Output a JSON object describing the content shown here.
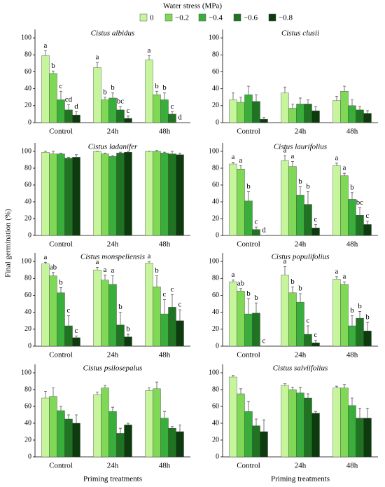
{
  "legend_title": "Water stress (MPa)",
  "ylabel": "Final germination (%)",
  "chart_data": [
    {
      "type": "bar",
      "title": "Cistus albidus",
      "categories": [
        "Control",
        "24h",
        "48h"
      ],
      "ylim": [
        0,
        110
      ],
      "yticks": [
        0,
        20,
        40,
        60,
        80,
        100
      ],
      "series": [
        {
          "name": "0",
          "color": "#c6f59c",
          "values": [
            79,
            65,
            74
          ],
          "errors": [
            6,
            6,
            5
          ],
          "annotations": [
            "a",
            "a",
            "a"
          ]
        },
        {
          "name": "−0.2",
          "color": "#7fd957",
          "values": [
            58,
            27,
            33
          ],
          "errors": [
            3,
            3,
            4
          ],
          "annotations": [
            "b",
            "b",
            "b"
          ]
        },
        {
          "name": "−0.4",
          "color": "#3aae3a",
          "values": [
            27,
            29,
            27
          ],
          "errors": [
            10,
            6,
            8
          ],
          "annotations": [
            "c",
            "b",
            "b"
          ]
        },
        {
          "name": "−0.6",
          "color": "#1e7420",
          "values": [
            15,
            15,
            10
          ],
          "errors": [
            6,
            4,
            3
          ],
          "annotations": [
            "cd",
            "bc",
            "c"
          ]
        },
        {
          "name": "−0.8",
          "color": "#0c3b0e",
          "values": [
            9,
            5,
            0
          ],
          "errors": [
            4,
            3,
            0
          ],
          "annotations": [
            "d",
            "c",
            "d"
          ]
        }
      ]
    },
    {
      "type": "bar",
      "title": "Cistus clusii",
      "categories": [
        "Control",
        "24h",
        "48h"
      ],
      "ylim": [
        0,
        110
      ],
      "yticks": [
        0,
        20,
        40,
        60,
        80,
        100
      ],
      "series": [
        {
          "name": "0",
          "color": "#c6f59c",
          "values": [
            27,
            35,
            26
          ],
          "errors": [
            8,
            7,
            5
          ]
        },
        {
          "name": "−0.2",
          "color": "#7fd957",
          "values": [
            24,
            17,
            37
          ],
          "errors": [
            6,
            5,
            6
          ]
        },
        {
          "name": "−0.4",
          "color": "#3aae3a",
          "values": [
            33,
            22,
            20
          ],
          "errors": [
            10,
            7,
            7
          ]
        },
        {
          "name": "−0.6",
          "color": "#1e7420",
          "values": [
            25,
            22,
            15
          ],
          "errors": [
            8,
            5,
            4
          ]
        },
        {
          "name": "−0.8",
          "color": "#0c3b0e",
          "values": [
            4,
            14,
            11
          ],
          "errors": [
            2,
            5,
            3
          ]
        }
      ]
    },
    {
      "type": "bar",
      "title": "Cistus ladanifer",
      "categories": [
        "Control",
        "24h",
        "48h"
      ],
      "ylim": [
        0,
        110
      ],
      "yticks": [
        0,
        20,
        40,
        60,
        80,
        100
      ],
      "series": [
        {
          "name": "0",
          "color": "#c6f59c",
          "values": [
            99,
            100,
            100
          ],
          "errors": [
            1,
            0,
            0
          ]
        },
        {
          "name": "−0.2",
          "color": "#7fd957",
          "values": [
            97,
            97,
            100
          ],
          "errors": [
            3,
            1,
            1
          ]
        },
        {
          "name": "−0.4",
          "color": "#3aae3a",
          "values": [
            97,
            94,
            98
          ],
          "errors": [
            1,
            1,
            1
          ]
        },
        {
          "name": "−0.6",
          "color": "#1e7420",
          "values": [
            92,
            98,
            97
          ],
          "errors": [
            1,
            1,
            3
          ]
        },
        {
          "name": "−0.8",
          "color": "#0c3b0e",
          "values": [
            93,
            99,
            96
          ],
          "errors": [
            3,
            1,
            2
          ]
        }
      ]
    },
    {
      "type": "bar",
      "title": "Cistus laurifolius",
      "categories": [
        "Control",
        "24h",
        "48h"
      ],
      "ylim": [
        0,
        110
      ],
      "yticks": [
        0,
        20,
        40,
        60,
        80,
        100
      ],
      "series": [
        {
          "name": "0",
          "color": "#c6f59c",
          "values": [
            85,
            89,
            83
          ],
          "errors": [
            2,
            6,
            3
          ],
          "annotations": [
            "a",
            "a",
            "a"
          ]
        },
        {
          "name": "−0.2",
          "color": "#7fd957",
          "values": [
            79,
            82,
            71
          ],
          "errors": [
            4,
            6,
            3
          ],
          "annotations": [
            "a",
            "a",
            "a"
          ]
        },
        {
          "name": "−0.4",
          "color": "#3aae3a",
          "values": [
            41,
            48,
            43
          ],
          "errors": [
            11,
            10,
            8
          ],
          "annotations": [
            "b",
            "b",
            "b"
          ]
        },
        {
          "name": "−0.6",
          "color": "#1e7420",
          "values": [
            7,
            37,
            24
          ],
          "errors": [
            3,
            15,
            9
          ],
          "annotations": [
            "c",
            "b",
            "bc"
          ]
        },
        {
          "name": "−0.8",
          "color": "#0c3b0e",
          "values": [
            0,
            9,
            13
          ],
          "errors": [
            0,
            4,
            4
          ],
          "annotations": [
            "d",
            "c",
            "c"
          ]
        }
      ]
    },
    {
      "type": "bar",
      "title": "Cistus monspeliensis",
      "categories": [
        "Control",
        "24h",
        "48h"
      ],
      "ylim": [
        0,
        110
      ],
      "yticks": [
        0,
        20,
        40,
        60,
        80,
        100
      ],
      "series": [
        {
          "name": "0",
          "color": "#c6f59c",
          "values": [
            97,
            90,
            98
          ],
          "errors": [
            2,
            3,
            2
          ],
          "annotations": [
            "a",
            "a",
            "a"
          ]
        },
        {
          "name": "−0.2",
          "color": "#7fd957",
          "values": [
            83,
            78,
            70
          ],
          "errors": [
            4,
            6,
            13
          ],
          "annotations": [
            "ab",
            "a",
            "b"
          ]
        },
        {
          "name": "−0.4",
          "color": "#3aae3a",
          "values": [
            63,
            73,
            38
          ],
          "errors": [
            6,
            10,
            17
          ],
          "annotations": [
            "b",
            "a",
            "c"
          ]
        },
        {
          "name": "−0.6",
          "color": "#1e7420",
          "values": [
            24,
            25,
            46
          ],
          "errors": [
            12,
            15,
            15
          ],
          "annotations": [
            "c",
            "b",
            "c"
          ]
        },
        {
          "name": "−0.8",
          "color": "#0c3b0e",
          "values": [
            10,
            11,
            30
          ],
          "errors": [
            2,
            3,
            13
          ],
          "annotations": [
            "c",
            "b",
            "c"
          ]
        }
      ]
    },
    {
      "type": "bar",
      "title": "Cistus populifolius",
      "categories": [
        "Control",
        "24h",
        "48h"
      ],
      "ylim": [
        0,
        110
      ],
      "yticks": [
        0,
        20,
        40,
        60,
        80,
        100
      ],
      "series": [
        {
          "name": "0",
          "color": "#c6f59c",
          "values": [
            76,
            84,
            79
          ],
          "errors": [
            2,
            10,
            3
          ],
          "annotations": [
            "a",
            "a",
            "a"
          ]
        },
        {
          "name": "−0.2",
          "color": "#7fd957",
          "values": [
            65,
            63,
            73
          ],
          "errors": [
            3,
            7,
            3
          ],
          "annotations": [
            "ab",
            "b",
            "a"
          ]
        },
        {
          "name": "−0.4",
          "color": "#3aae3a",
          "values": [
            38,
            52,
            24
          ],
          "errors": [
            18,
            10,
            12
          ],
          "annotations": [
            "b",
            "b",
            "b"
          ]
        },
        {
          "name": "−0.6",
          "color": "#1e7420",
          "values": [
            39,
            14,
            33
          ],
          "errors": [
            12,
            10,
            8
          ],
          "annotations": [
            "b",
            "c",
            "b"
          ]
        },
        {
          "name": "−0.8",
          "color": "#0c3b0e",
          "values": [
            0,
            4,
            18
          ],
          "errors": [
            0,
            3,
            10
          ],
          "annotations": [
            "c",
            "c",
            "b"
          ]
        }
      ]
    },
    {
      "type": "bar",
      "title": "Cistus psilosepalus",
      "categories": [
        "Control",
        "24h",
        "48h"
      ],
      "ylim": [
        0,
        110
      ],
      "yticks": [
        0,
        20,
        40,
        60,
        80,
        100
      ],
      "xlabel": "Priming treatments",
      "series": [
        {
          "name": "0",
          "color": "#c6f59c",
          "values": [
            70,
            74,
            79
          ],
          "errors": [
            8,
            3,
            3
          ]
        },
        {
          "name": "−0.2",
          "color": "#7fd957",
          "values": [
            72,
            82,
            81
          ],
          "errors": [
            10,
            3,
            8
          ]
        },
        {
          "name": "−0.4",
          "color": "#3aae3a",
          "values": [
            55,
            54,
            46
          ],
          "errors": [
            5,
            5,
            8
          ]
        },
        {
          "name": "−0.6",
          "color": "#1e7420",
          "values": [
            45,
            28,
            34
          ],
          "errors": [
            5,
            6,
            2
          ]
        },
        {
          "name": "−0.8",
          "color": "#0c3b0e",
          "values": [
            40,
            38,
            30
          ],
          "errors": [
            10,
            2,
            8
          ]
        }
      ]
    },
    {
      "type": "bar",
      "title": "Cistus salviifolius",
      "categories": [
        "Control",
        "24h",
        "48h"
      ],
      "ylim": [
        0,
        110
      ],
      "yticks": [
        0,
        20,
        40,
        60,
        80,
        100
      ],
      "xlabel": "Priming treatments",
      "series": [
        {
          "name": "0",
          "color": "#c6f59c",
          "values": [
            95,
            85,
            82
          ],
          "errors": [
            2,
            2,
            2
          ]
        },
        {
          "name": "−0.2",
          "color": "#7fd957",
          "values": [
            75,
            80,
            82
          ],
          "errors": [
            6,
            3,
            4
          ]
        },
        {
          "name": "−0.4",
          "color": "#3aae3a",
          "values": [
            54,
            76,
            61
          ],
          "errors": [
            12,
            7,
            9
          ]
        },
        {
          "name": "−0.6",
          "color": "#1e7420",
          "values": [
            37,
            70,
            46
          ],
          "errors": [
            8,
            5,
            12
          ]
        },
        {
          "name": "−0.8",
          "color": "#0c3b0e",
          "values": [
            30,
            52,
            46
          ],
          "errors": [
            14,
            2,
            12
          ]
        }
      ]
    }
  ]
}
